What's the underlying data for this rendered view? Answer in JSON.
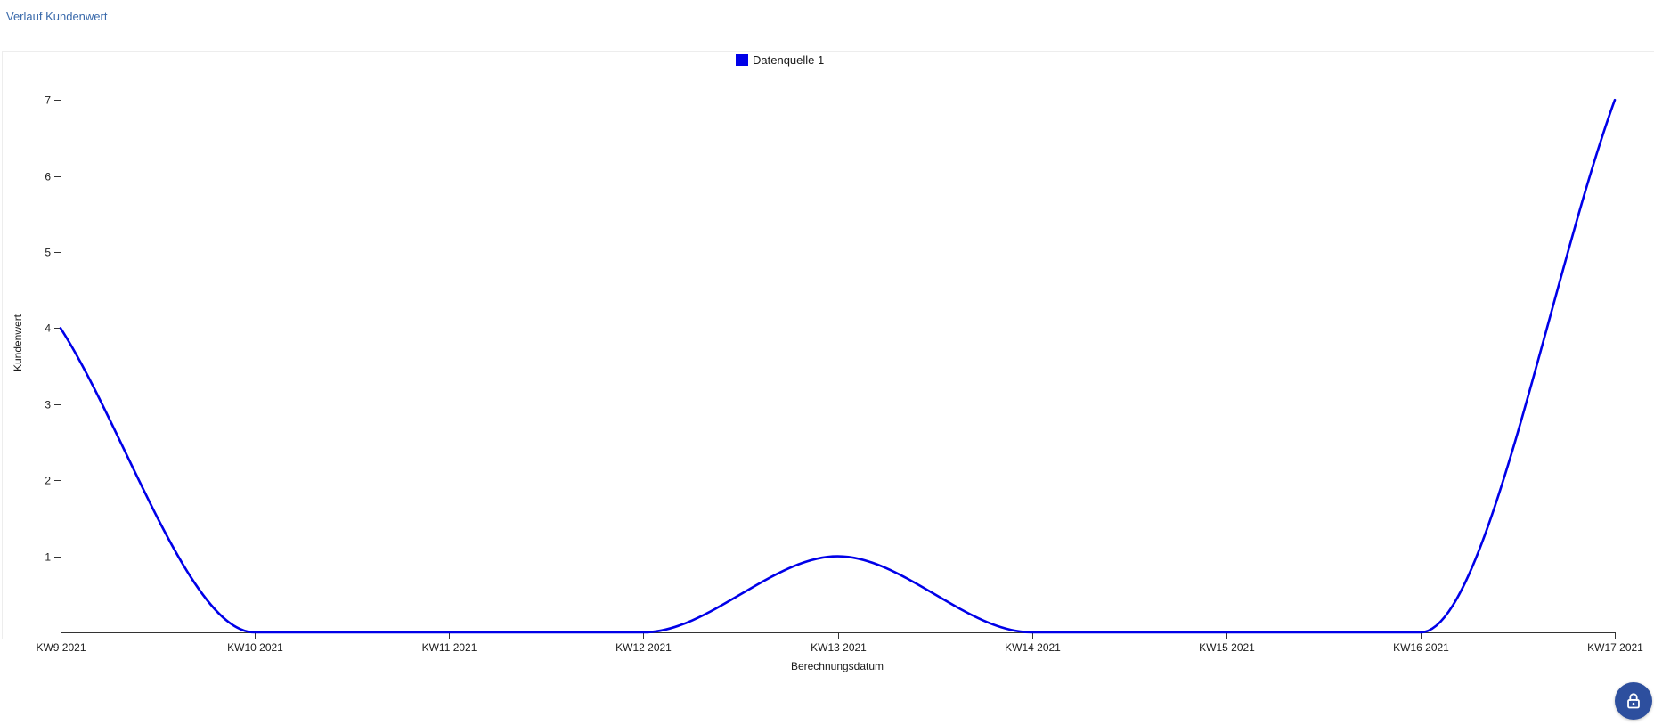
{
  "page": {
    "title": "Verlauf Kundenwert"
  },
  "legend": {
    "items": [
      {
        "label": "Datenquelle 1",
        "color": "#0000e8"
      }
    ]
  },
  "chart_data": {
    "type": "line",
    "title": "Verlauf Kundenwert",
    "categories": [
      "KW9 2021",
      "KW10 2021",
      "KW11 2021",
      "KW12 2021",
      "KW13 2021",
      "KW14 2021",
      "KW15 2021",
      "KW16 2021",
      "KW17 2021"
    ],
    "series": [
      {
        "name": "Datenquelle 1",
        "color": "#0000e8",
        "values": [
          4,
          0,
          0,
          0,
          1,
          0,
          0,
          0,
          7
        ]
      }
    ],
    "xlabel": "Berechnungsdatum",
    "ylabel": "Kundenwert",
    "ylim": [
      0,
      7
    ],
    "yticks": [
      1,
      2,
      3,
      4,
      5,
      6,
      7
    ],
    "grid": false,
    "legend_position": "top-center",
    "line_style": "smooth-monotone"
  },
  "colors": {
    "series_line": "#0000e8",
    "title_text": "#3a6aab",
    "axis_line": "#333333",
    "tick_text": "#1b1b1b",
    "lock_button_bg": "#2d4f9e",
    "panel_border": "#ededed"
  },
  "lock_button": {
    "icon": "lock-icon"
  }
}
